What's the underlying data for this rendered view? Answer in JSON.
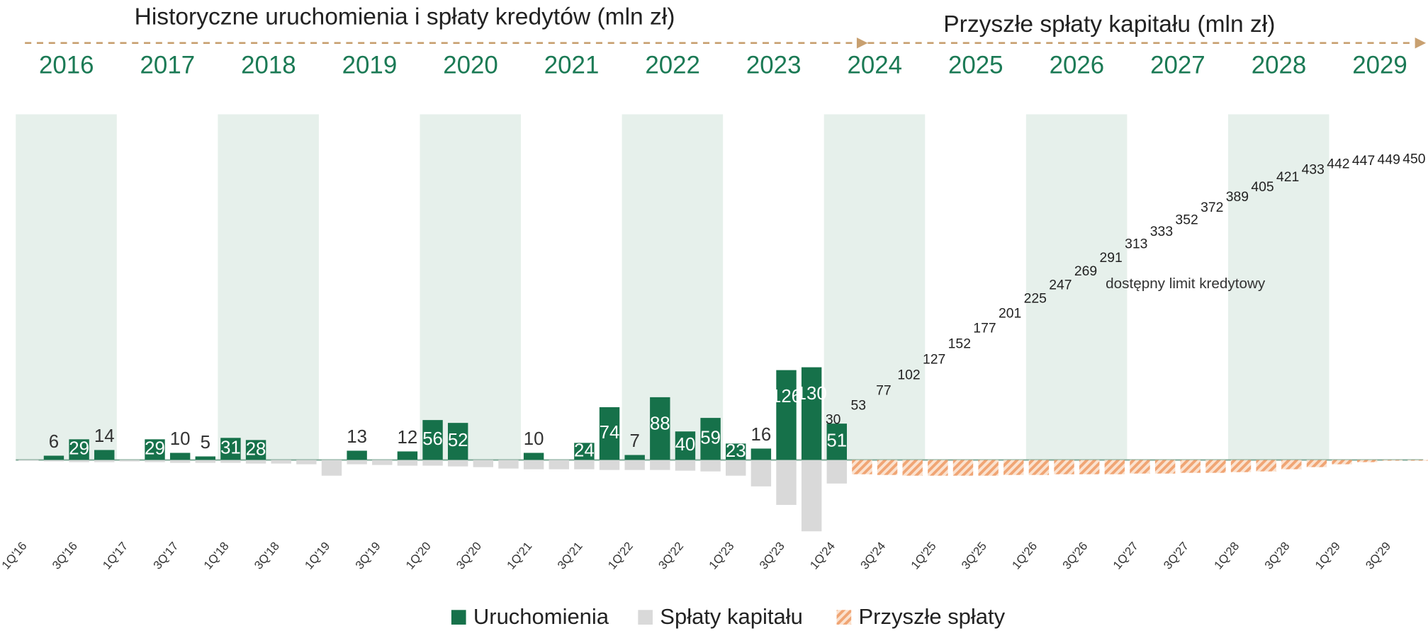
{
  "chart_data": {
    "type": "bar",
    "title": "Historyczne uruchomienia i spłaty kredytów (mln zł)",
    "subtitle": "Przyszłe spłaty kapitału (mln zł)",
    "years": [
      "2016",
      "2017",
      "2018",
      "2019",
      "2020",
      "2021",
      "2022",
      "2023",
      "2024",
      "2025",
      "2026",
      "2027",
      "2028",
      "2029"
    ],
    "categories": [
      "1Q'16",
      null,
      "3Q'16",
      null,
      "1Q'17",
      null,
      "3Q'17",
      null,
      "1Q'18",
      null,
      "3Q'18",
      null,
      "1Q'19",
      null,
      "3Q'19",
      null,
      "1Q'20",
      null,
      "3Q'20",
      null,
      "1Q'21",
      null,
      "3Q'21",
      null,
      "1Q'22",
      null,
      "3Q'22",
      null,
      "1Q'23",
      null,
      "3Q'23",
      null,
      "1Q'24",
      null,
      "3Q'24",
      null,
      "1Q'25",
      null,
      "3Q'25",
      null,
      "1Q'26",
      null,
      "3Q'26",
      null,
      "1Q'27",
      null,
      "3Q'27",
      null,
      "1Q'28",
      null,
      "3Q'28",
      null,
      "1Q'29",
      null,
      "3Q'29",
      null
    ],
    "series": [
      {
        "name": "Uruchomienia",
        "color": "#16714a",
        "values": [
          null,
          6,
          29,
          14,
          null,
          29,
          10,
          5,
          31,
          28,
          null,
          null,
          null,
          13,
          null,
          12,
          56,
          52,
          null,
          null,
          10,
          null,
          24,
          74,
          7,
          88,
          40,
          59,
          23,
          16,
          126,
          130,
          51,
          null,
          null,
          null,
          null,
          null,
          null,
          null,
          null,
          null,
          null,
          null,
          null,
          null,
          null,
          null,
          null,
          null,
          null,
          null,
          null,
          null,
          null,
          null
        ]
      },
      {
        "name": "Spłaty kapitału",
        "color": "#d9d9d9",
        "values": [
          -1,
          -2,
          -3,
          -3,
          -2,
          -3,
          -4,
          -4,
          -4,
          -5,
          -5,
          -6,
          -22,
          -6,
          -7,
          -8,
          -8,
          -9,
          -10,
          -12,
          -13,
          -13,
          -13,
          -14,
          -14,
          -14,
          -15,
          -16,
          -22,
          -37,
          -63,
          -100,
          -33,
          null,
          null,
          null,
          null,
          null,
          null,
          null,
          null,
          null,
          null,
          null,
          null,
          null,
          null,
          null,
          null,
          null,
          null,
          null,
          null,
          null,
          null,
          null
        ]
      },
      {
        "name": "Przyszłe spłaty",
        "color": "#f4b183",
        "values": [
          null,
          null,
          null,
          null,
          null,
          null,
          null,
          null,
          null,
          null,
          null,
          null,
          null,
          null,
          null,
          null,
          null,
          null,
          null,
          null,
          null,
          null,
          null,
          null,
          null,
          null,
          null,
          null,
          null,
          null,
          null,
          null,
          null,
          -20,
          -21,
          -22,
          -22,
          -22,
          -22,
          -21,
          -21,
          -20,
          -20,
          -20,
          -19,
          -19,
          -18,
          -18,
          -17,
          -16,
          -13,
          -10,
          -6,
          -3,
          -1,
          -1
        ]
      },
      {
        "name": "dostępny limit kredytowy",
        "color": "#222222",
        "values": [
          null,
          null,
          null,
          null,
          null,
          null,
          null,
          null,
          null,
          null,
          null,
          null,
          null,
          null,
          null,
          null,
          null,
          null,
          null,
          null,
          null,
          null,
          null,
          null,
          null,
          null,
          null,
          null,
          null,
          null,
          null,
          null,
          30,
          53,
          77,
          102,
          127,
          152,
          177,
          201,
          225,
          247,
          269,
          291,
          313,
          333,
          352,
          372,
          389,
          405,
          421,
          433,
          442,
          447,
          449,
          450
        ]
      }
    ]
  }
}
